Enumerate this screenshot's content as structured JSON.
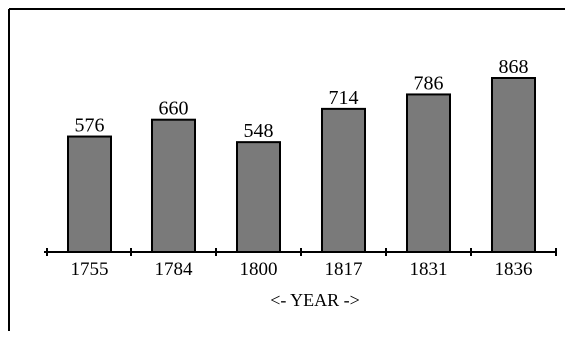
{
  "chart_data": {
    "type": "bar",
    "categories": [
      "1755",
      "1784",
      "1800",
      "1817",
      "1831",
      "1836"
    ],
    "values": [
      576,
      660,
      548,
      714,
      786,
      868
    ],
    "value_labels": [
      "576",
      "660",
      "548",
      "714",
      "786",
      "868"
    ],
    "title": "",
    "xlabel": "<-  YEAR ->",
    "ylabel": "",
    "ylim": [
      0,
      868
    ],
    "grid": false,
    "legend": "none",
    "colors": {
      "bar_fill": "#7a7a7a",
      "bar_stroke": "#000000",
      "frame": "#000000",
      "text": "#000000"
    }
  }
}
